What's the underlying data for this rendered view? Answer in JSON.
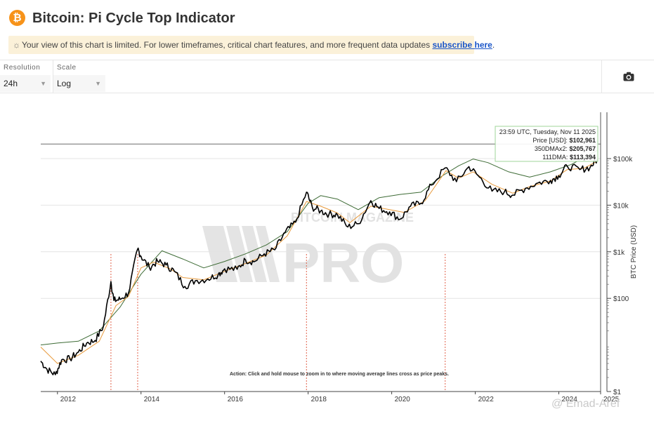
{
  "header": {
    "logo_glyph": "₿",
    "title": "Bitcoin: Pi Cycle Top Indicator"
  },
  "notice": {
    "icon": "sun-icon",
    "text": "Your view of this chart is limited. For lower timeframes, critical chart features, and more frequent data updates ",
    "link": "subscribe here",
    "suffix": "."
  },
  "controls": {
    "resolution_label": "Resolution",
    "resolution_value": "24h",
    "scale_label": "Scale",
    "scale_value": "Log",
    "camera_icon": "camera-icon"
  },
  "colors": {
    "price": "#000000",
    "dma350x2": "#3d6b35",
    "dma111": "#e89a3c",
    "peak_marker": "#e0624a",
    "accent": "#f7931a",
    "tooltip_border": "#9fd59a"
  },
  "chart_data": {
    "type": "line",
    "title": "Bitcoin: Pi Cycle Top Indicator",
    "xlabel": "",
    "ylabel": "BTC Price (USD)",
    "yscale": "log",
    "ylim": [
      1,
      1000000
    ],
    "xlim": [
      2011.6,
      2025.0
    ],
    "x_ticks": [
      "2012",
      "2014",
      "2016",
      "2018",
      "2020",
      "2022",
      "2024",
      "2025"
    ],
    "y_ticks": [
      "$1",
      "$100",
      "$1k",
      "$10k",
      "$100k"
    ],
    "grid": "horizontal",
    "legend": "none",
    "series": [
      {
        "name": "Price [USD]",
        "points": [
          [
            2011.6,
            4.5
          ],
          [
            2011.75,
            3
          ],
          [
            2011.95,
            2.3
          ],
          [
            2012.1,
            4.8
          ],
          [
            2012.3,
            5
          ],
          [
            2012.5,
            7
          ],
          [
            2012.7,
            11
          ],
          [
            2012.9,
            12.5
          ],
          [
            2013.1,
            25
          ],
          [
            2013.28,
            230
          ],
          [
            2013.35,
            90
          ],
          [
            2013.5,
            95
          ],
          [
            2013.7,
            130
          ],
          [
            2013.92,
            1150
          ],
          [
            2014.0,
            800
          ],
          [
            2014.2,
            460
          ],
          [
            2014.4,
            620
          ],
          [
            2014.6,
            520
          ],
          [
            2014.8,
            380
          ],
          [
            2015.05,
            180
          ],
          [
            2015.3,
            240
          ],
          [
            2015.6,
            260
          ],
          [
            2015.85,
            330
          ],
          [
            2016.0,
            430
          ],
          [
            2016.3,
            420
          ],
          [
            2016.5,
            670
          ],
          [
            2016.7,
            610
          ],
          [
            2016.95,
            900
          ],
          [
            2017.2,
            1100
          ],
          [
            2017.45,
            2600
          ],
          [
            2017.7,
            4300
          ],
          [
            2017.96,
            19000
          ],
          [
            2018.1,
            9000
          ],
          [
            2018.3,
            7500
          ],
          [
            2018.5,
            6400
          ],
          [
            2018.7,
            6300
          ],
          [
            2018.95,
            3400
          ],
          [
            2019.2,
            4000
          ],
          [
            2019.5,
            12500
          ],
          [
            2019.7,
            8500
          ],
          [
            2019.95,
            7200
          ],
          [
            2020.2,
            5000
          ],
          [
            2020.45,
            9500
          ],
          [
            2020.7,
            11000
          ],
          [
            2020.95,
            27000
          ],
          [
            2021.28,
            63000
          ],
          [
            2021.55,
            32000
          ],
          [
            2021.85,
            67000
          ],
          [
            2022.1,
            40000
          ],
          [
            2022.4,
            20000
          ],
          [
            2022.7,
            19500
          ],
          [
            2022.9,
            16500
          ],
          [
            2023.2,
            23000
          ],
          [
            2023.5,
            30000
          ],
          [
            2023.8,
            34000
          ],
          [
            2024.0,
            43000
          ],
          [
            2024.2,
            69000
          ],
          [
            2024.5,
            58000
          ],
          [
            2024.75,
            65000
          ],
          [
            2024.92,
            97000
          ]
        ]
      },
      {
        "name": "350DMAx2",
        "points": [
          [
            2011.6,
            10
          ],
          [
            2012.0,
            11
          ],
          [
            2012.5,
            12
          ],
          [
            2013.0,
            20
          ],
          [
            2013.5,
            65
          ],
          [
            2014.0,
            330
          ],
          [
            2014.5,
            1050
          ],
          [
            2015.0,
            700
          ],
          [
            2015.5,
            450
          ],
          [
            2016.0,
            620
          ],
          [
            2016.5,
            900
          ],
          [
            2017.0,
            1400
          ],
          [
            2017.5,
            2700
          ],
          [
            2018.0,
            11000
          ],
          [
            2018.3,
            16000
          ],
          [
            2018.7,
            13500
          ],
          [
            2019.2,
            8000
          ],
          [
            2019.7,
            14500
          ],
          [
            2020.2,
            17000
          ],
          [
            2020.7,
            19000
          ],
          [
            2021.2,
            42000
          ],
          [
            2021.6,
            70000
          ],
          [
            2021.95,
            98000
          ],
          [
            2022.3,
            82000
          ],
          [
            2022.8,
            52000
          ],
          [
            2023.3,
            40000
          ],
          [
            2023.8,
            52000
          ],
          [
            2024.3,
            75000
          ],
          [
            2024.92,
            150000
          ]
        ]
      },
      {
        "name": "111DMA",
        "points": [
          [
            2011.6,
            9
          ],
          [
            2012.0,
            4
          ],
          [
            2012.5,
            6
          ],
          [
            2013.0,
            12
          ],
          [
            2013.4,
            70
          ],
          [
            2013.7,
            110
          ],
          [
            2014.0,
            450
          ],
          [
            2014.3,
            600
          ],
          [
            2014.7,
            430
          ],
          [
            2015.0,
            280
          ],
          [
            2015.5,
            250
          ],
          [
            2016.0,
            380
          ],
          [
            2016.5,
            560
          ],
          [
            2017.0,
            850
          ],
          [
            2017.5,
            2200
          ],
          [
            2017.96,
            12000
          ],
          [
            2018.3,
            9500
          ],
          [
            2018.7,
            6800
          ],
          [
            2019.0,
            4200
          ],
          [
            2019.5,
            9500
          ],
          [
            2019.95,
            8000
          ],
          [
            2020.3,
            7000
          ],
          [
            2020.8,
            12500
          ],
          [
            2021.3,
            55000
          ],
          [
            2021.6,
            38000
          ],
          [
            2021.95,
            52000
          ],
          [
            2022.4,
            28000
          ],
          [
            2022.9,
            18000
          ],
          [
            2023.3,
            25000
          ],
          [
            2023.8,
            33000
          ],
          [
            2024.2,
            58000
          ],
          [
            2024.6,
            62000
          ],
          [
            2024.92,
            88000
          ]
        ]
      }
    ],
    "peak_markers": [
      2013.28,
      2013.92,
      2017.96,
      2021.28
    ],
    "horizontal_reference": 205767,
    "tooltip": {
      "timestamp": "23:59 UTC, Tuesday, Nov 11 2025",
      "price_label": "Price [USD]:",
      "price_value": "$102,961",
      "dma350_label": "350DMAx2:",
      "dma350_value": "$205,767",
      "dma111_label": "111DMA:",
      "dma111_value": "$113,394"
    },
    "action_note": "Action: Click and hold mouse to zoom in to where moving average lines cross as price peaks.",
    "watermark_small": "BITCOIN MAGAZINE",
    "watermark_large": "PRO",
    "credit": "@ Emad-Aref"
  }
}
